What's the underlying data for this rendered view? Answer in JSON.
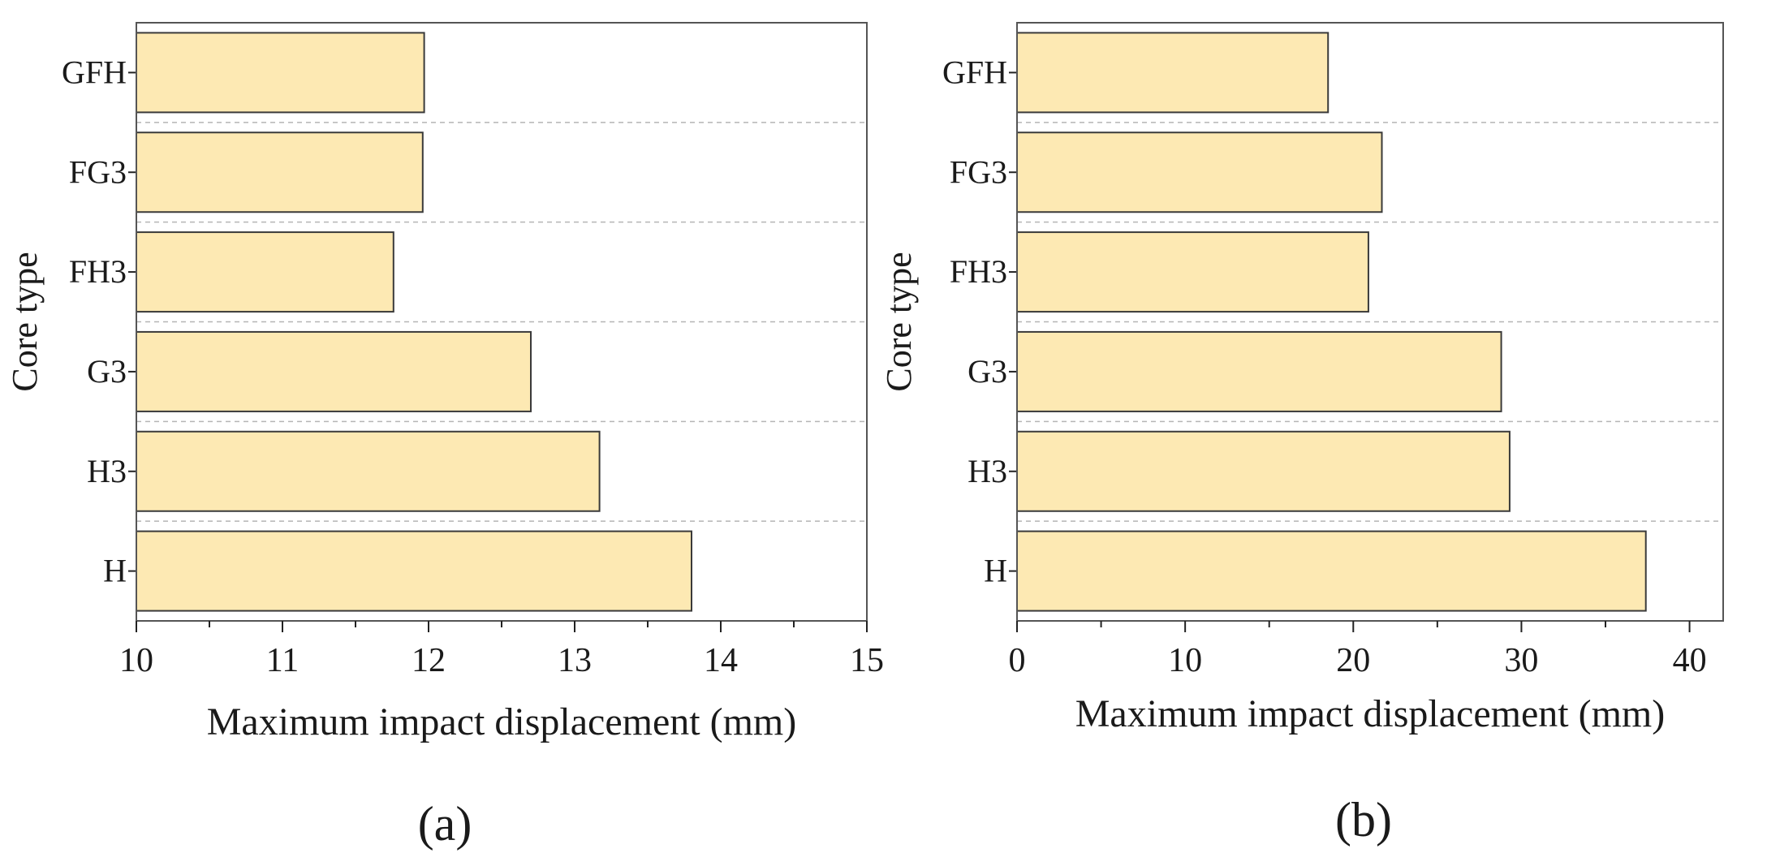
{
  "chart_data": [
    {
      "type": "bar",
      "orientation": "horizontal",
      "panel_label": "(a)",
      "categories": [
        "GFH",
        "FG3",
        "FH3",
        "G3",
        "H3",
        "H"
      ],
      "values": [
        11.97,
        11.96,
        11.76,
        12.7,
        13.17,
        13.8
      ],
      "xlabel": "Maximum impact displacement (mm)",
      "ylabel": "Core type",
      "xlim": [
        10,
        15
      ],
      "xticks": [
        "10",
        "11",
        "12",
        "13",
        "14",
        "15"
      ],
      "grid": "dashed horizontal separators between categories",
      "bar_color": "#fde9b3"
    },
    {
      "type": "bar",
      "orientation": "horizontal",
      "panel_label": "(b)",
      "categories": [
        "GFH",
        "FG3",
        "FH3",
        "G3",
        "H3",
        "H"
      ],
      "values": [
        18.5,
        21.7,
        20.9,
        28.8,
        29.3,
        37.4
      ],
      "xlabel": "Maximum impact displacement (mm)",
      "ylabel": "Core type",
      "xlim": [
        0,
        42
      ],
      "xticks": [
        "0",
        "10",
        "20",
        "30",
        "40"
      ],
      "xtick_values": [
        0,
        10,
        20,
        30,
        40
      ],
      "grid": "dashed horizontal separators between categories",
      "bar_color": "#fde9b3"
    }
  ]
}
